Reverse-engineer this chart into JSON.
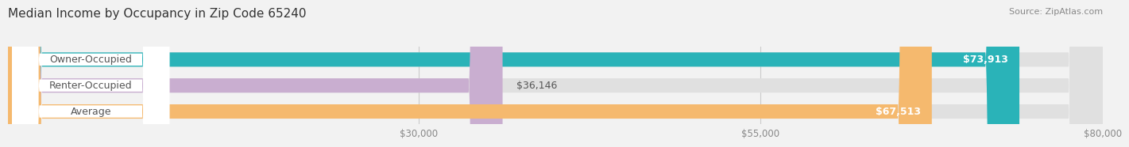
{
  "title": "Median Income by Occupancy in Zip Code 65240",
  "source": "Source: ZipAtlas.com",
  "categories": [
    "Owner-Occupied",
    "Renter-Occupied",
    "Average"
  ],
  "values": [
    73913,
    36146,
    67513
  ],
  "bar_colors": [
    "#2ab3b8",
    "#c9aed0",
    "#f5b96e"
  ],
  "value_labels": [
    "$73,913",
    "$36,146",
    "$67,513"
  ],
  "xmin": 0,
  "xmax": 80000,
  "xticks": [
    30000,
    55000,
    80000
  ],
  "xtick_labels": [
    "$30,000",
    "$55,000",
    "$80,000"
  ],
  "bar_height": 0.55,
  "bg_color": "#f2f2f2",
  "title_fontsize": 11,
  "label_fontsize": 9,
  "tick_fontsize": 8.5,
  "source_fontsize": 8
}
